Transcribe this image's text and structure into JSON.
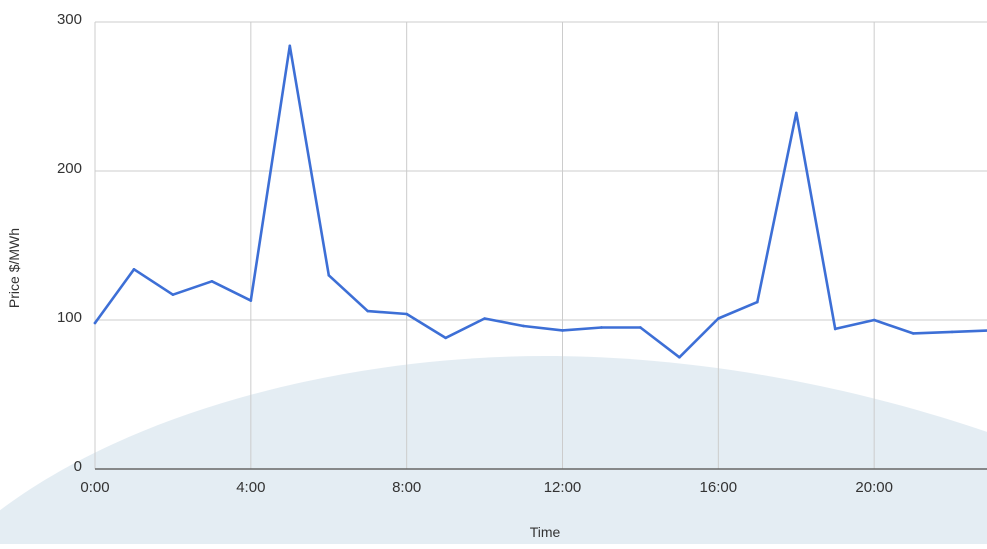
{
  "chart_data": {
    "type": "line",
    "title": "",
    "xlabel": "Time",
    "ylabel": "Price $/MWh",
    "x": [
      "0:00",
      "1:00",
      "2:00",
      "3:00",
      "4:00",
      "5:00",
      "6:00",
      "7:00",
      "8:00",
      "9:00",
      "10:00",
      "11:00",
      "12:00",
      "13:00",
      "14:00",
      "15:00",
      "16:00",
      "17:00",
      "18:00",
      "19:00",
      "20:00",
      "21:00",
      "22:00",
      "23:00"
    ],
    "x_ticks": [
      "0:00",
      "4:00",
      "8:00",
      "12:00",
      "16:00",
      "20:00"
    ],
    "x_tick_hours": [
      0,
      4,
      8,
      12,
      16,
      20
    ],
    "y_ticks": [
      "0",
      "100",
      "200",
      "300"
    ],
    "ylim": [
      0,
      300
    ],
    "series": [
      {
        "values": [
          98,
          134,
          117,
          126,
          113,
          284,
          130,
          106,
          104,
          88,
          101,
          96,
          93,
          95,
          95,
          75,
          101,
          112,
          239,
          94,
          100,
          91,
          92,
          93
        ]
      }
    ],
    "grid": true,
    "legend": "none",
    "colors": {
      "line": "#3d6fd6",
      "grid": "#cccccc",
      "axis": "#666666",
      "background_arc": "#dde9f0"
    }
  }
}
